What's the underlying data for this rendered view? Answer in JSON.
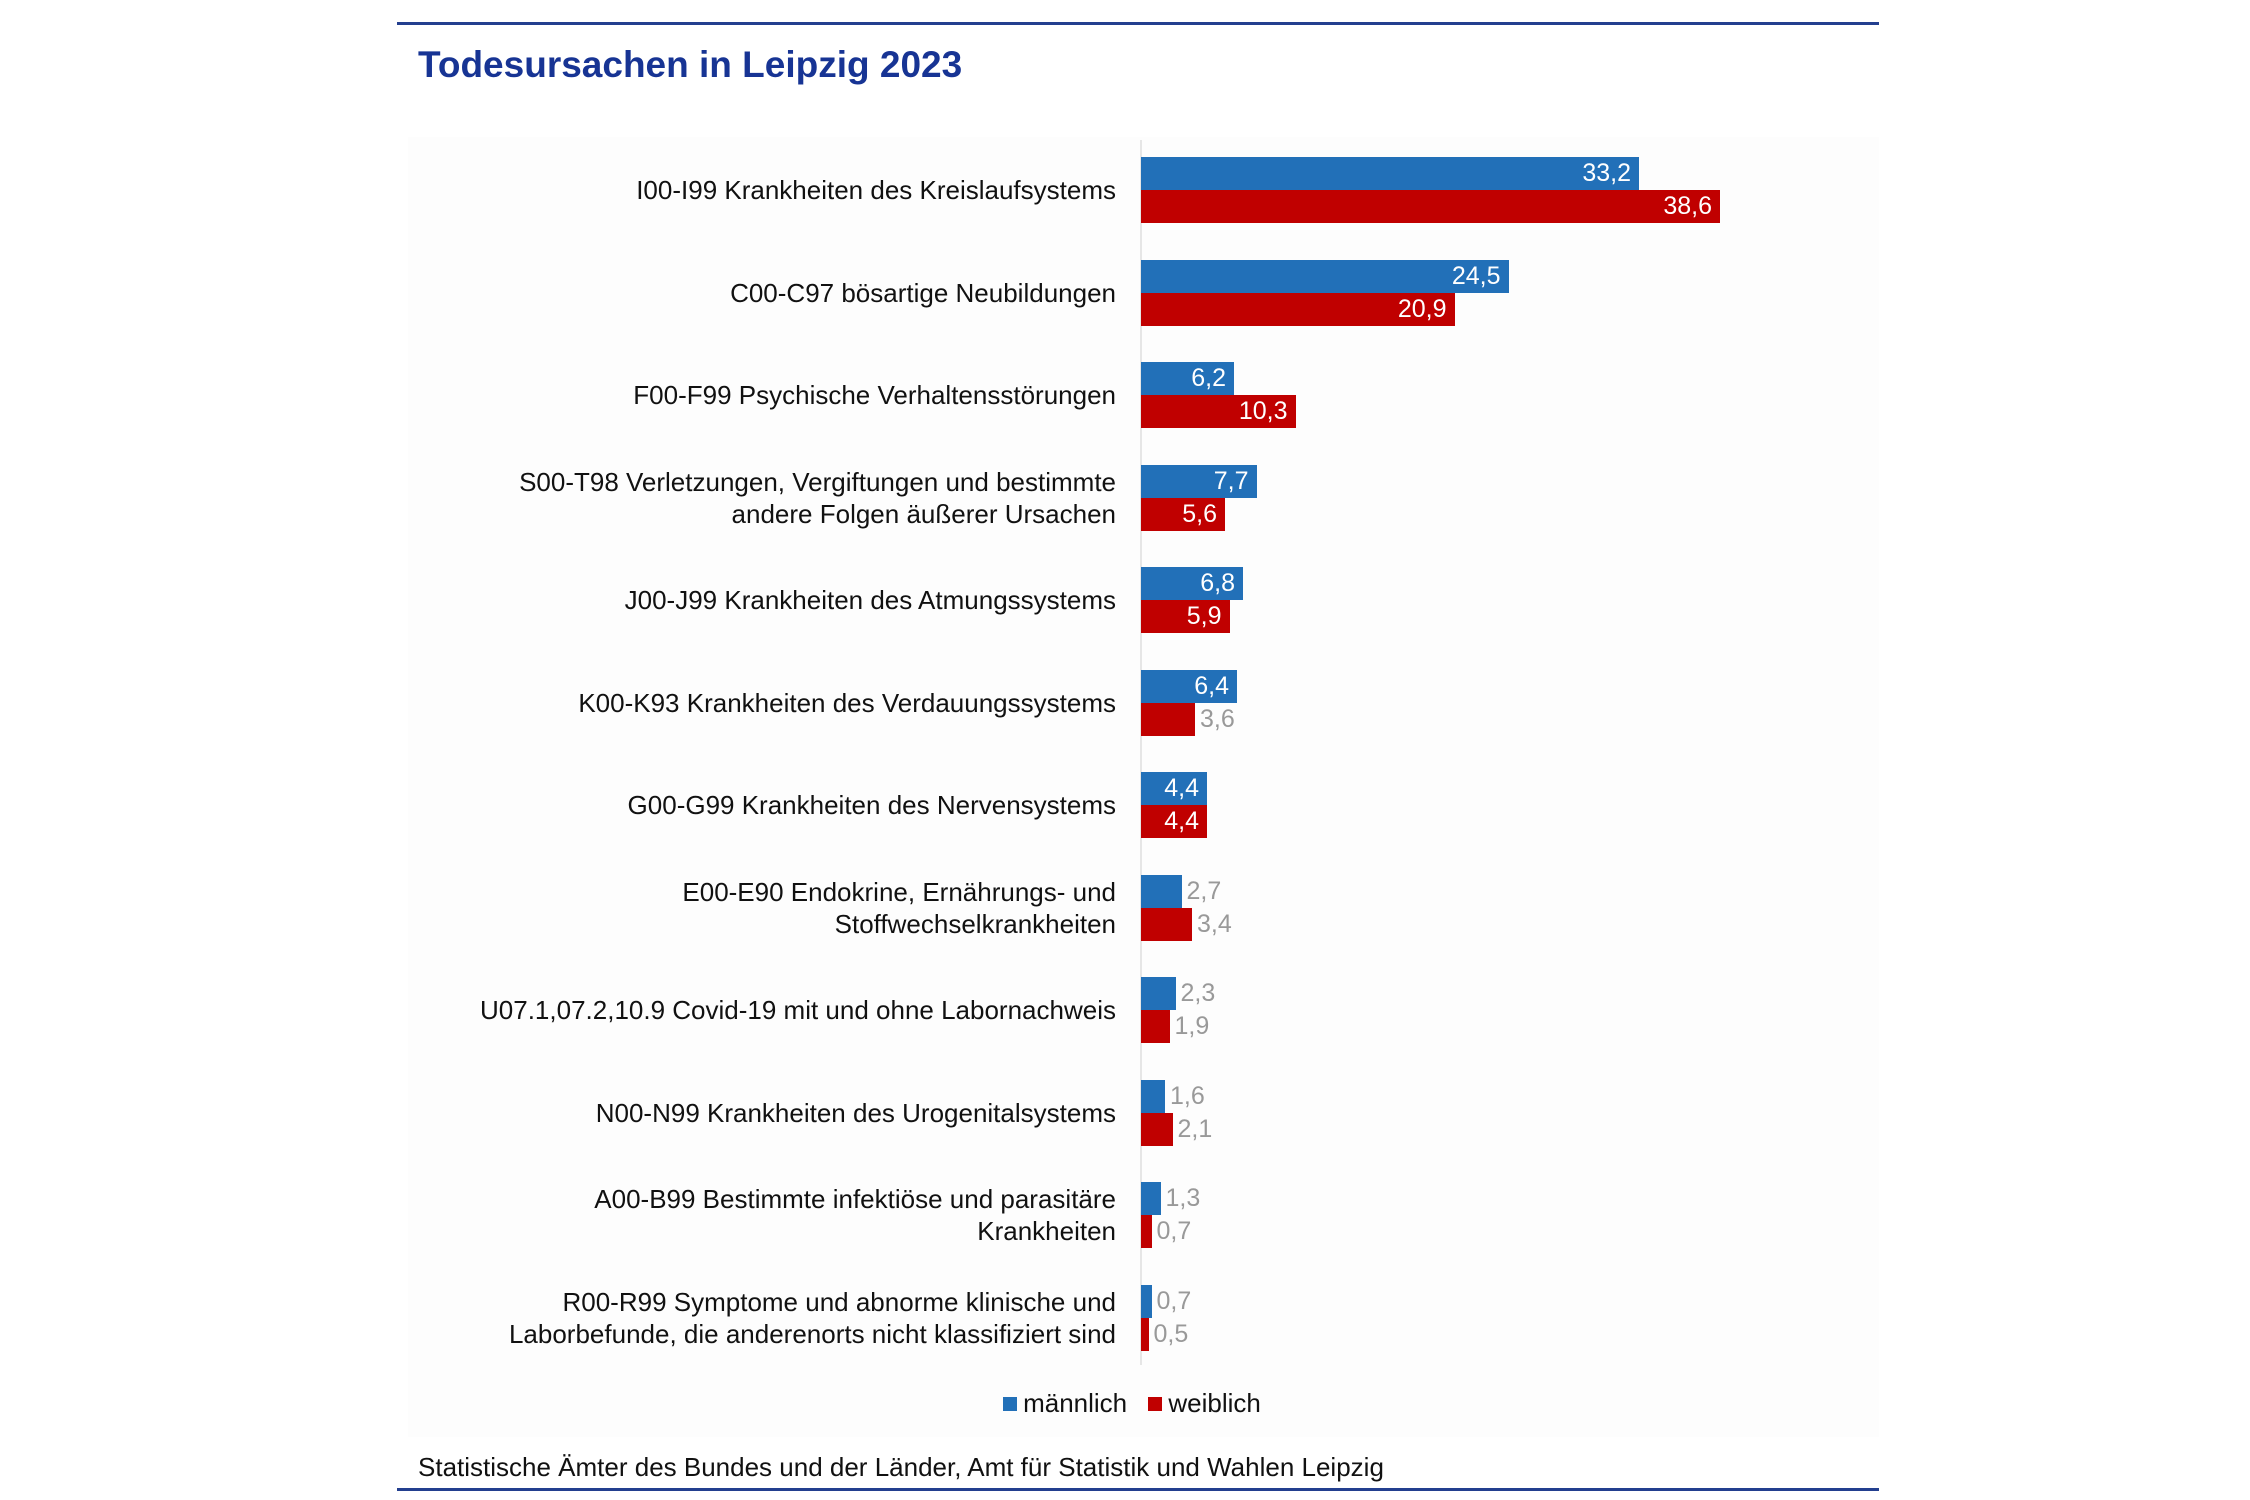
{
  "chart_data": {
    "type": "bar",
    "orientation": "horizontal",
    "title": "Todesursachen in Leipzig 2023",
    "categories": [
      [
        "I00-I99 Krankheiten des Kreislaufsystems"
      ],
      [
        "C00-C97 bösartige Neubildungen"
      ],
      [
        "F00-F99 Psychische Verhaltensstörungen"
      ],
      [
        "S00-T98 Verletzungen, Vergiftungen und bestimmte",
        "andere Folgen äußerer Ursachen"
      ],
      [
        "J00-J99 Krankheiten des Atmungssystems"
      ],
      [
        "K00-K93 Krankheiten des Verdauungssystems"
      ],
      [
        "G00-G99 Krankheiten des Nervensystems"
      ],
      [
        "E00-E90 Endokrine, Ernährungs- und",
        "Stoffwechselkrankheiten"
      ],
      [
        "U07.1,07.2,10.9 Covid-19 mit und ohne Labornachweis"
      ],
      [
        "N00-N99 Krankheiten des Urogenitalsystems"
      ],
      [
        "A00-B99 Bestimmte infektiöse und parasitäre",
        "Krankheiten"
      ],
      [
        "R00-R99 Symptome und abnorme klinische und",
        "Laborbefunde, die anderenorts nicht klassifiziert sind"
      ]
    ],
    "series": [
      {
        "name": "männlich",
        "color": "#2270b8",
        "values": [
          33.2,
          24.5,
          6.2,
          7.7,
          6.8,
          6.4,
          4.4,
          2.7,
          2.3,
          1.6,
          1.3,
          0.7
        ],
        "labels": [
          "33,2",
          "24,5",
          "6,2",
          "7,7",
          "6,8",
          "6,4",
          "4,4",
          "2,7",
          "2,3",
          "1,6",
          "1,3",
          "0,7"
        ]
      },
      {
        "name": "weiblich",
        "color": "#c00000",
        "values": [
          38.6,
          20.9,
          10.3,
          5.6,
          5.9,
          3.6,
          4.4,
          3.4,
          1.9,
          2.1,
          0.7,
          0.5
        ],
        "labels": [
          "38,6",
          "20,9",
          "10,3",
          "5,6",
          "5,9",
          "3,6",
          "4,4",
          "3,4",
          "1,9",
          "2,1",
          "0,7",
          "0,5"
        ]
      }
    ],
    "xlim": [
      0,
      50
    ],
    "grid": false,
    "legend": "bottom-center",
    "source": "Statistische Ämter des Bundes und der Länder, Amt für Statistik und Wahlen Leipzig"
  }
}
